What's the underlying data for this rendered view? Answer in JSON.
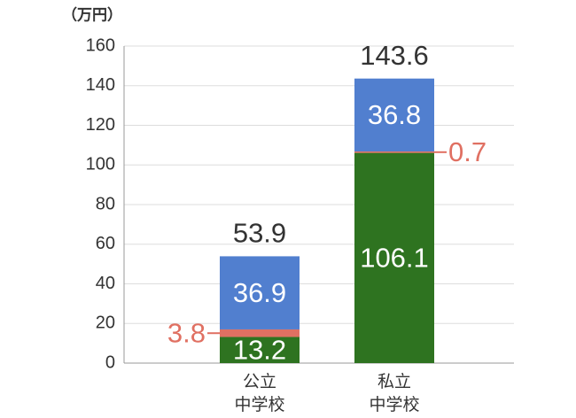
{
  "chart_data": {
    "type": "stacked_bar",
    "y_label": "（万円）",
    "categories": [
      "公立\n中学校",
      "私立\n中学校"
    ],
    "series": [
      {
        "color": "#2e7320",
        "values": [
          13.2,
          106.1
        ]
      },
      {
        "color": "#e07062",
        "values": [
          3.8,
          0.7
        ]
      },
      {
        "color": "#517fcf",
        "values": [
          36.9,
          36.8
        ]
      }
    ],
    "totals": [
      53.9,
      143.6
    ],
    "ylim": [
      0,
      160
    ],
    "yticks": [
      0,
      20,
      40,
      60,
      80,
      100,
      120,
      140,
      160
    ],
    "grid": true
  }
}
